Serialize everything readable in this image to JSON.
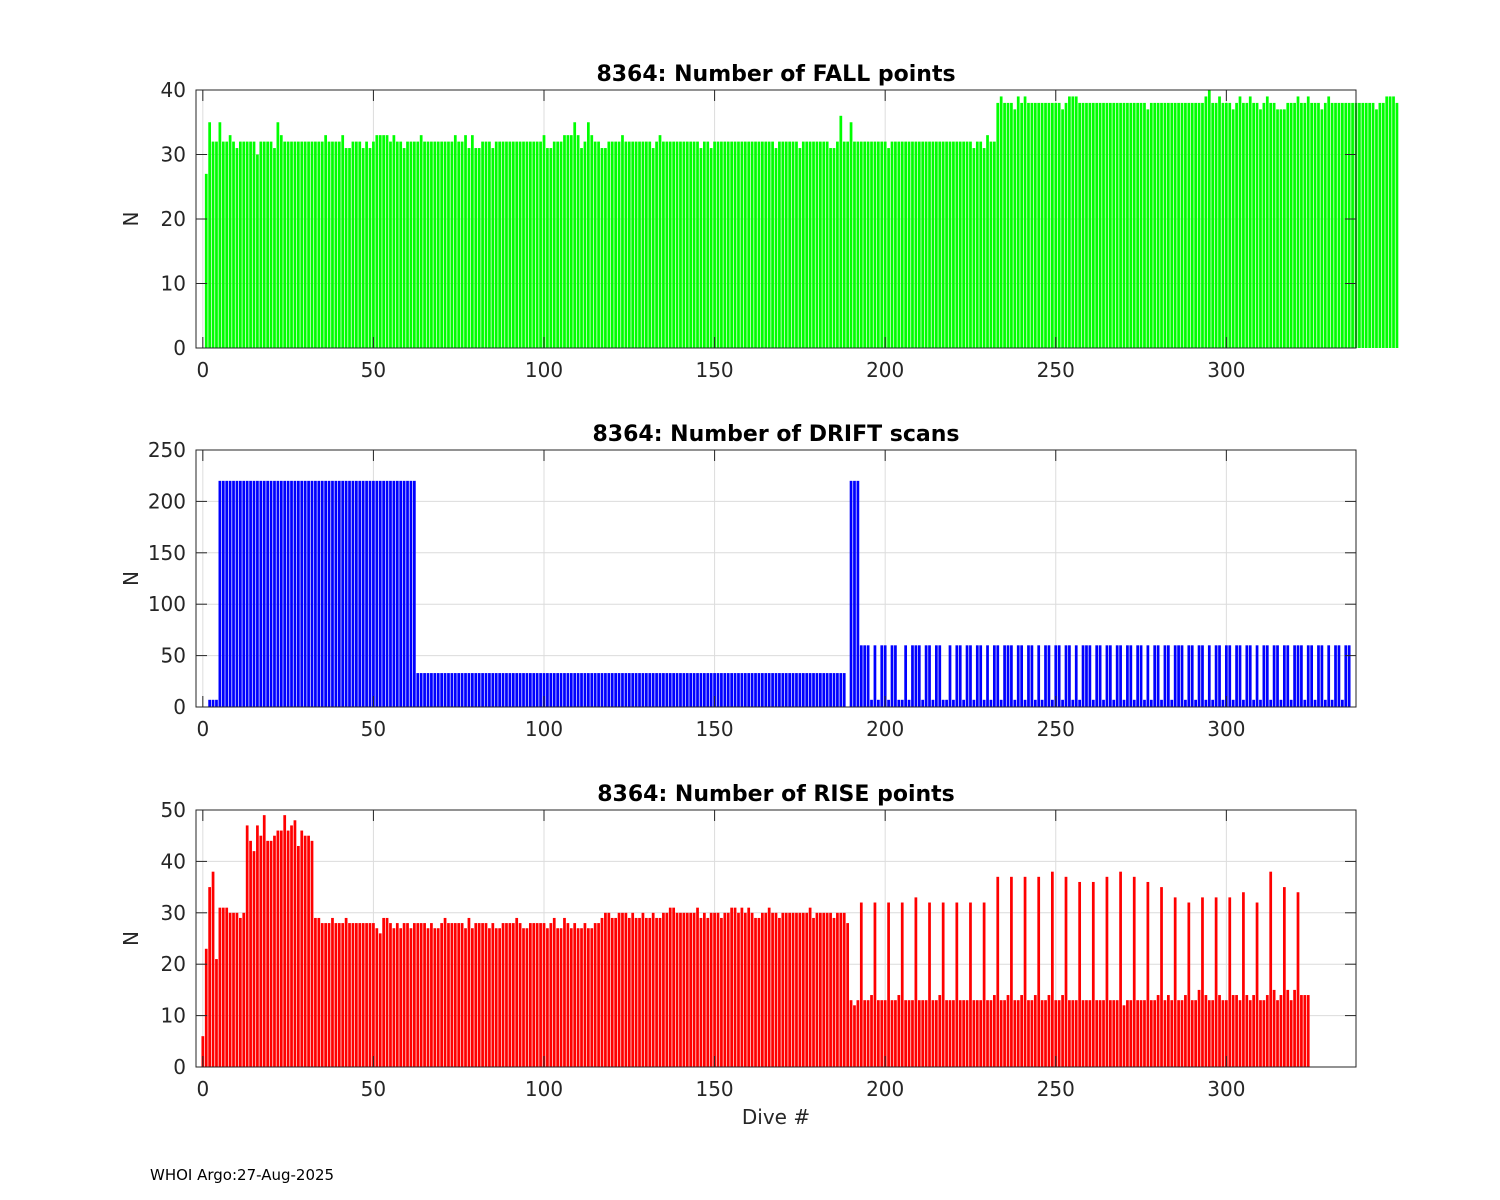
{
  "chart_data": [
    {
      "type": "bar",
      "title": "8364: Number of FALL points",
      "xlabel": "",
      "ylabel": "N",
      "xlim": [
        -2,
        338
      ],
      "ylim": [
        0,
        40
      ],
      "xticks": [
        0,
        50,
        100,
        150,
        200,
        250,
        300
      ],
      "yticks": [
        0,
        10,
        20,
        30,
        40
      ],
      "grid": true,
      "color": "#00ff00",
      "x_start": 1,
      "values": [
        27,
        35,
        32,
        32,
        35,
        32,
        32,
        33,
        32,
        31,
        32,
        32,
        32,
        32,
        32,
        30,
        32,
        32,
        32,
        32,
        31,
        35,
        33,
        32,
        32,
        32,
        32,
        32,
        32,
        32,
        32,
        32,
        32,
        32,
        32,
        33,
        32,
        32,
        32,
        32,
        33,
        31,
        31,
        32,
        32,
        32,
        31,
        32,
        31,
        32,
        33,
        33,
        33,
        33,
        32,
        33,
        32,
        32,
        31,
        32,
        32,
        32,
        32,
        33,
        32,
        32,
        32,
        32,
        32,
        32,
        32,
        32,
        32,
        33,
        32,
        32,
        33,
        31,
        33,
        31,
        31,
        32,
        32,
        32,
        31,
        32,
        32,
        32,
        32,
        32,
        32,
        32,
        32,
        32,
        32,
        32,
        32,
        32,
        32,
        33,
        31,
        31,
        32,
        32,
        32,
        33,
        33,
        33,
        35,
        33,
        31,
        32,
        35,
        33,
        32,
        32,
        31,
        31,
        32,
        32,
        32,
        32,
        33,
        32,
        32,
        32,
        32,
        32,
        32,
        32,
        32,
        31,
        32,
        33,
        32,
        32,
        32,
        32,
        32,
        32,
        32,
        32,
        32,
        32,
        32,
        31,
        32,
        32,
        31,
        32,
        32,
        32,
        32,
        32,
        32,
        32,
        32,
        32,
        32,
        32,
        32,
        32,
        32,
        32,
        32,
        32,
        32,
        31,
        32,
        32,
        32,
        32,
        32,
        32,
        31,
        32,
        32,
        32,
        32,
        32,
        32,
        32,
        32,
        31,
        31,
        32,
        36,
        32,
        32,
        35,
        32,
        32,
        32,
        32,
        32,
        32,
        32,
        32,
        32,
        32,
        31,
        32,
        32,
        32,
        32,
        32,
        32,
        32,
        32,
        32,
        32,
        32,
        32,
        32,
        32,
        32,
        32,
        32,
        32,
        32,
        32,
        32,
        32,
        32,
        32,
        31,
        32,
        32,
        31,
        33,
        32,
        32,
        38,
        39,
        38,
        38,
        38,
        37,
        39,
        38,
        39,
        38,
        38,
        38,
        38,
        38,
        38,
        38,
        38,
        38,
        38,
        37,
        38,
        39,
        39,
        39,
        38,
        38,
        38,
        38,
        38,
        38,
        38,
        38,
        38,
        38,
        38,
        38,
        38,
        38,
        38,
        38,
        38,
        38,
        38,
        38,
        37,
        38,
        38,
        38,
        38,
        38,
        38,
        38,
        38,
        38,
        38,
        38,
        38,
        38,
        38,
        38,
        38,
        39,
        40,
        38,
        38,
        39,
        38,
        38,
        38,
        37,
        38,
        39,
        38,
        38,
        39,
        38,
        38,
        37,
        38,
        39,
        38,
        38,
        37,
        37,
        37,
        38,
        38,
        38,
        39,
        38,
        38,
        39,
        38,
        38,
        38,
        37,
        38,
        39,
        38,
        38,
        38,
        38,
        38,
        38,
        38,
        38,
        38,
        38,
        38,
        38,
        38,
        37,
        38,
        38,
        39,
        39,
        39,
        38
      ]
    },
    {
      "type": "bar",
      "title": "8364: Number of DRIFT scans",
      "xlabel": "",
      "ylabel": "N",
      "xlim": [
        -2,
        338
      ],
      "ylim": [
        0,
        250
      ],
      "xticks": [
        0,
        50,
        100,
        150,
        200,
        250,
        300
      ],
      "yticks": [
        0,
        50,
        100,
        150,
        200,
        250
      ],
      "grid": true,
      "color": "#0000ff",
      "x_start": 1,
      "values": [
        0,
        7,
        7,
        7,
        220,
        220,
        220,
        220,
        220,
        220,
        220,
        220,
        220,
        220,
        220,
        220,
        220,
        220,
        220,
        220,
        220,
        220,
        220,
        220,
        220,
        220,
        220,
        220,
        220,
        220,
        220,
        220,
        220,
        220,
        220,
        220,
        220,
        220,
        220,
        220,
        220,
        220,
        220,
        220,
        220,
        220,
        220,
        220,
        220,
        220,
        220,
        220,
        220,
        220,
        220,
        220,
        220,
        220,
        220,
        220,
        220,
        220,
        33,
        33,
        33,
        33,
        33,
        33,
        33,
        33,
        33,
        33,
        33,
        33,
        33,
        33,
        33,
        33,
        33,
        33,
        33,
        33,
        33,
        33,
        33,
        33,
        33,
        33,
        33,
        33,
        33,
        33,
        33,
        33,
        33,
        33,
        33,
        33,
        33,
        33,
        33,
        33,
        33,
        33,
        33,
        33,
        33,
        33,
        33,
        33,
        33,
        33,
        33,
        33,
        33,
        33,
        33,
        33,
        33,
        33,
        33,
        33,
        33,
        33,
        33,
        33,
        33,
        33,
        33,
        33,
        33,
        33,
        33,
        33,
        33,
        33,
        33,
        33,
        33,
        33,
        33,
        33,
        33,
        33,
        33,
        33,
        33,
        33,
        33,
        33,
        33,
        33,
        33,
        33,
        33,
        33,
        33,
        33,
        33,
        33,
        33,
        33,
        33,
        33,
        33,
        33,
        33,
        33,
        33,
        33,
        33,
        33,
        33,
        33,
        33,
        33,
        33,
        33,
        33,
        33,
        33,
        33,
        33,
        33,
        33,
        33,
        33,
        33,
        0,
        220,
        220,
        220,
        60,
        60,
        60,
        7,
        60,
        7,
        60,
        60,
        7,
        60,
        60,
        7,
        7,
        60,
        7,
        60,
        60,
        60,
        7,
        60,
        60,
        7,
        60,
        60,
        7,
        7,
        60,
        7,
        60,
        60,
        7,
        60,
        60,
        7,
        60,
        60,
        7,
        60,
        7,
        60,
        60,
        7,
        60,
        60,
        60,
        7,
        60,
        60,
        7,
        60,
        60,
        7,
        60,
        7,
        60,
        60,
        7,
        60,
        60,
        7,
        60,
        60,
        7,
        60,
        7,
        60,
        60,
        60,
        7,
        60,
        60,
        7,
        60,
        60,
        7,
        60,
        60,
        7,
        60,
        60,
        7,
        60,
        60,
        7,
        60,
        7,
        60,
        60,
        7,
        60,
        60,
        7,
        60,
        60,
        60,
        7,
        60,
        60,
        7,
        60,
        60,
        7,
        60,
        7,
        60,
        60,
        7,
        60,
        60,
        7,
        60,
        60,
        7,
        60,
        60,
        7,
        60,
        7,
        60,
        60,
        7,
        60,
        60,
        7,
        60,
        60,
        7,
        60,
        60,
        60,
        7,
        60,
        60,
        7,
        60,
        60,
        7,
        60,
        7,
        60,
        60,
        7,
        60,
        60
      ]
    },
    {
      "type": "bar",
      "title": "8364: Number of RISE points",
      "xlabel": "Dive #",
      "ylabel": "N",
      "xlim": [
        -2,
        338
      ],
      "ylim": [
        0,
        50
      ],
      "xticks": [
        0,
        50,
        100,
        150,
        200,
        250,
        300
      ],
      "yticks": [
        0,
        10,
        20,
        30,
        40,
        50
      ],
      "grid": true,
      "color": "#ff0000",
      "x_start": 0,
      "values": [
        6,
        23,
        35,
        38,
        21,
        31,
        31,
        31,
        30,
        30,
        30,
        29,
        30,
        47,
        44,
        42,
        47,
        45,
        49,
        44,
        44,
        45,
        46,
        46,
        49,
        46,
        47,
        48,
        43,
        46,
        45,
        45,
        44,
        29,
        29,
        28,
        28,
        28,
        29,
        28,
        28,
        28,
        29,
        28,
        28,
        28,
        28,
        28,
        28,
        28,
        28,
        27,
        26,
        29,
        29,
        28,
        27,
        28,
        27,
        28,
        28,
        27,
        28,
        28,
        28,
        28,
        27,
        28,
        27,
        27,
        28,
        29,
        28,
        28,
        28,
        28,
        28,
        27,
        29,
        27,
        28,
        28,
        28,
        28,
        27,
        28,
        27,
        27,
        28,
        28,
        28,
        28,
        29,
        28,
        27,
        27,
        28,
        28,
        28,
        28,
        28,
        27,
        28,
        29,
        27,
        27,
        29,
        28,
        27,
        28,
        27,
        27,
        28,
        27,
        27,
        28,
        28,
        29,
        30,
        30,
        29,
        29,
        30,
        30,
        30,
        29,
        30,
        29,
        29,
        30,
        29,
        29,
        30,
        29,
        29,
        30,
        30,
        31,
        31,
        30,
        30,
        30,
        30,
        30,
        30,
        31,
        29,
        30,
        29,
        30,
        30,
        30,
        29,
        30,
        30,
        31,
        31,
        30,
        31,
        30,
        31,
        30,
        29,
        29,
        30,
        30,
        31,
        30,
        30,
        29,
        30,
        30,
        30,
        30,
        30,
        30,
        30,
        30,
        31,
        29,
        30,
        30,
        30,
        30,
        30,
        29,
        30,
        30,
        30,
        28,
        13,
        12,
        13,
        32,
        13,
        13,
        14,
        32,
        13,
        13,
        13,
        32,
        13,
        13,
        14,
        32,
        13,
        13,
        13,
        33,
        13,
        13,
        13,
        32,
        13,
        13,
        14,
        32,
        13,
        13,
        13,
        32,
        13,
        13,
        13,
        32,
        13,
        13,
        13,
        32,
        13,
        13,
        14,
        37,
        13,
        13,
        14,
        37,
        13,
        13,
        14,
        37,
        13,
        13,
        14,
        37,
        13,
        13,
        14,
        38,
        13,
        13,
        14,
        37,
        13,
        13,
        13,
        36,
        13,
        13,
        13,
        36,
        13,
        13,
        13,
        37,
        13,
        13,
        13,
        38,
        12,
        13,
        13,
        37,
        13,
        13,
        13,
        36,
        13,
        13,
        14,
        35,
        13,
        14,
        13,
        33,
        13,
        13,
        14,
        32,
        13,
        13,
        15,
        33,
        14,
        13,
        13,
        33,
        14,
        13,
        13,
        33,
        14,
        14,
        13,
        34,
        14,
        13,
        14,
        32,
        13,
        13,
        14,
        38,
        15,
        13,
        14,
        35,
        15,
        13,
        15,
        34,
        14,
        14,
        14
      ]
    }
  ],
  "footer": "WHOI Argo:27-Aug-2025"
}
